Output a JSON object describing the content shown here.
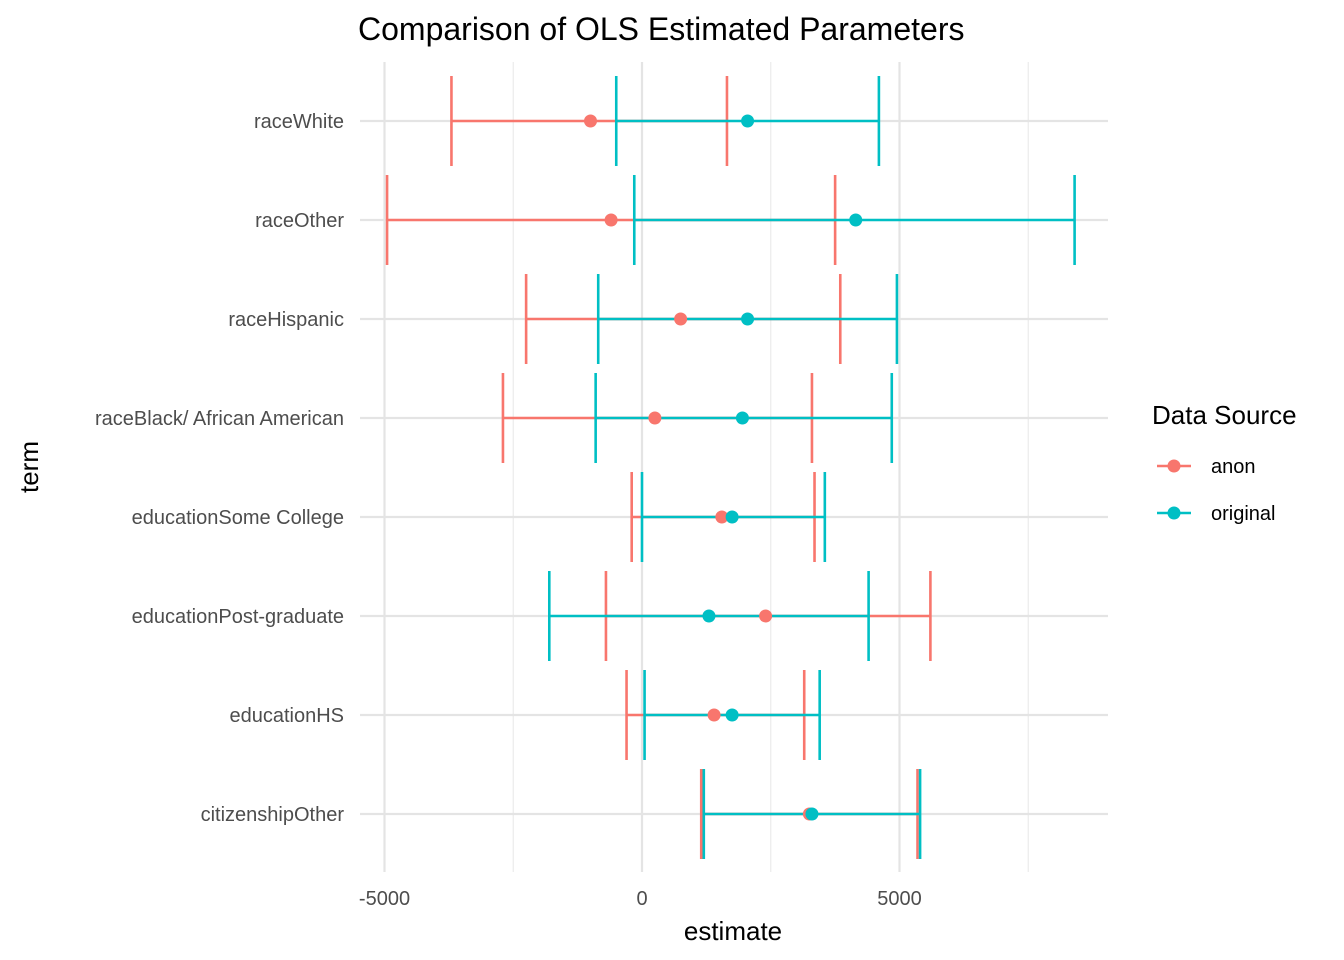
{
  "chart_data": {
    "type": "errorbar",
    "title": "Comparison of OLS Estimated Parameters",
    "xlabel": "estimate",
    "ylabel": "term",
    "xlim": [
      -5000,
      9000
    ],
    "x_ticks": [
      -5000,
      0,
      5000
    ],
    "x_tick_labels": [
      "-5000",
      "0",
      "5000"
    ],
    "x_minor_ticks": [
      -2500,
      2500,
      7500
    ],
    "grid": true,
    "legend": {
      "title": "Data Source",
      "placement": "right"
    },
    "categories": [
      "raceWhite",
      "raceOther",
      "raceHispanic",
      "raceBlack/ African American",
      "educationSome College",
      "educationPost-graduate",
      "educationHS",
      "citizenshipOther"
    ],
    "series": [
      {
        "name": "anon",
        "color": "#F8766D",
        "estimate": [
          -1000,
          -600,
          750,
          250,
          1550,
          2400,
          1400,
          3250
        ],
        "lower": [
          -3700,
          -4950,
          -2250,
          -2700,
          -200,
          -700,
          -300,
          1150
        ],
        "upper": [
          1650,
          3750,
          3850,
          3300,
          3350,
          5600,
          3150,
          5350
        ]
      },
      {
        "name": "original",
        "color": "#00BFC4",
        "estimate": [
          2050,
          4150,
          2050,
          1950,
          1750,
          1300,
          1750,
          3300
        ],
        "lower": [
          -500,
          -150,
          -850,
          -900,
          0,
          -1800,
          50,
          1200
        ],
        "upper": [
          4600,
          8400,
          4950,
          4850,
          3550,
          4400,
          3450,
          5400
        ]
      }
    ]
  }
}
